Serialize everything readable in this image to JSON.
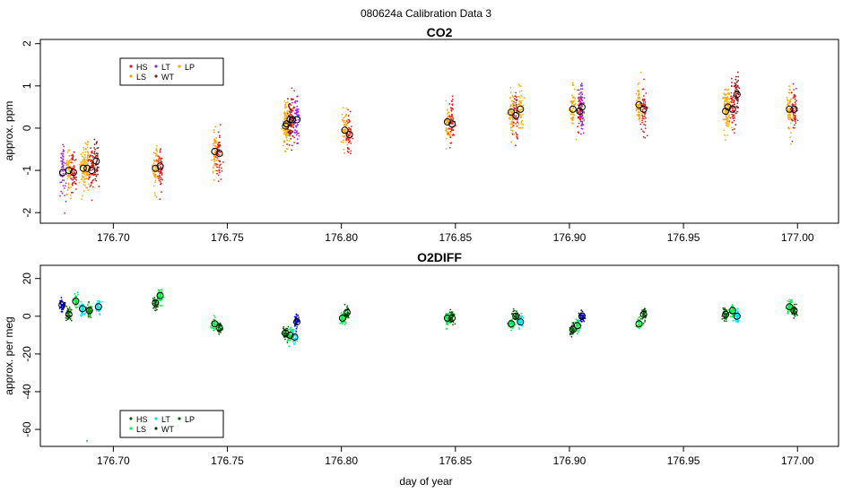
{
  "figure": {
    "suptitle": "080624a   Calibration Data 3",
    "xlabel": "day of year"
  },
  "chart_data": [
    {
      "type": "scatter",
      "title": "CO2",
      "xlabel": "",
      "ylabel": "approx. ppm",
      "xlim": [
        176.668,
        177.018
      ],
      "ylim": [
        -2.25,
        2.1
      ],
      "xticks": [
        176.7,
        176.75,
        176.8,
        176.85,
        176.9,
        176.95,
        177.0
      ],
      "xtick_labels": [
        "176.70",
        "176.75",
        "176.80",
        "176.85",
        "176.90",
        "176.95",
        "177.00"
      ],
      "yticks": [
        -2,
        -1,
        0,
        1,
        2
      ],
      "ytick_labels": [
        "-2",
        "-1",
        "0",
        "1",
        "2"
      ],
      "legend": {
        "position": "top-left",
        "entries": [
          {
            "name": "HS",
            "color": "#e41a1c"
          },
          {
            "name": "LS",
            "color": "#ffa500"
          },
          {
            "name": "LT",
            "color": "#8a2be2"
          },
          {
            "name": "WT",
            "color": "#8b1a1a"
          },
          {
            "name": "LP",
            "color": "#ffa500"
          }
        ]
      },
      "series": [
        {
          "name": "LT",
          "color": "#a020f0",
          "x": [
            176.6778
          ],
          "means": [
            -1.05
          ]
        },
        {
          "name": "LS",
          "color": "#ffa500",
          "x": [
            176.6805,
            176.6885,
            176.7185,
            176.7445,
            176.7755,
            176.8015,
            176.8465,
            176.8745,
            176.9015,
            176.9305,
            176.9685,
            176.9965
          ],
          "means": [
            -1.0,
            -0.95,
            -0.95,
            -0.55,
            0.05,
            -0.05,
            0.15,
            0.38,
            0.45,
            0.55,
            0.4,
            0.45
          ]
        },
        {
          "name": "HS",
          "color": "#e41a1c",
          "x": [
            176.6825,
            176.6905,
            176.7205,
            176.7465,
            176.7785,
            176.8035,
            176.8485,
            176.8765,
            176.9045,
            176.9325,
            176.9715,
            176.9985
          ],
          "means": [
            -1.05,
            -1.0,
            -0.9,
            -0.6,
            0.2,
            -0.15,
            0.1,
            0.3,
            0.4,
            0.45,
            0.45,
            0.45
          ]
        },
        {
          "name": "LP",
          "color": "#ffb000",
          "x": [
            176.6868,
            176.776,
            176.8785,
            176.9695
          ],
          "means": [
            -0.95,
            0.1,
            0.45,
            0.5
          ]
        },
        {
          "name": "WT",
          "color": "#8b1a1a",
          "x": [
            176.6925,
            176.7775,
            176.9735
          ],
          "means": [
            -0.78,
            0.2,
            0.8
          ]
        },
        {
          "name": "LT",
          "color": "#a020f0",
          "x": [
            176.7805,
            176.9055
          ],
          "means": [
            0.2,
            0.5
          ]
        }
      ]
    },
    {
      "type": "scatter",
      "title": "O2DIFF",
      "xlabel": "day of year",
      "ylabel": "approx. per meg",
      "xlim": [
        176.668,
        177.018
      ],
      "ylim": [
        -69,
        27
      ],
      "xticks": [
        176.7,
        176.75,
        176.8,
        176.85,
        176.9,
        176.95,
        177.0
      ],
      "xtick_labels": [
        "176.70",
        "176.75",
        "176.80",
        "176.85",
        "176.90",
        "176.95",
        "177.00"
      ],
      "yticks": [
        -60,
        -40,
        -20,
        0,
        20
      ],
      "ytick_labels": [
        "-60",
        "-40",
        "-20",
        "0",
        "20"
      ],
      "legend": {
        "position": "bottom-left",
        "entries": [
          {
            "name": "HS",
            "color": "#006400"
          },
          {
            "name": "LS",
            "color": "#00ff44"
          },
          {
            "name": "LT",
            "color": "#00e5ee"
          },
          {
            "name": "WT",
            "color": "#0a3d0a"
          },
          {
            "name": "LP",
            "color": "#006400"
          }
        ]
      },
      "outlier": {
        "x": 176.6885,
        "y": -66,
        "color": "#1db954"
      },
      "series": [
        {
          "name": "LT-blue",
          "color": "#0000cd",
          "x": [
            176.6775,
            176.7805,
            176.9055
          ],
          "means": [
            6,
            -3,
            0
          ]
        },
        {
          "name": "HS",
          "color": "#006400",
          "x": [
            176.6805,
            176.7185,
            176.7465,
            176.7755,
            176.8025,
            176.8485,
            176.8765,
            176.9015,
            176.9325,
            176.9685,
            176.9985
          ],
          "means": [
            1,
            7,
            -6,
            -9,
            2,
            -1,
            0,
            -7,
            1,
            1,
            3
          ]
        },
        {
          "name": "LS",
          "color": "#00ee44",
          "x": [
            176.6835,
            176.7205,
            176.7445,
            176.7775,
            176.8005,
            176.8465,
            176.8745,
            176.9035,
            176.9305,
            176.9715,
            176.9965
          ],
          "means": [
            8,
            11,
            -4,
            -10,
            -1,
            -1,
            -4,
            -5,
            -4,
            3,
            5
          ]
        },
        {
          "name": "LT",
          "color": "#00e5ee",
          "x": [
            176.6865,
            176.6935,
            176.7795,
            176.8785,
            176.9735
          ],
          "means": [
            4,
            5,
            -11,
            -3,
            0
          ]
        },
        {
          "name": "LP",
          "color": "#009a00",
          "x": [
            176.6895
          ],
          "means": [
            3
          ]
        }
      ]
    }
  ]
}
